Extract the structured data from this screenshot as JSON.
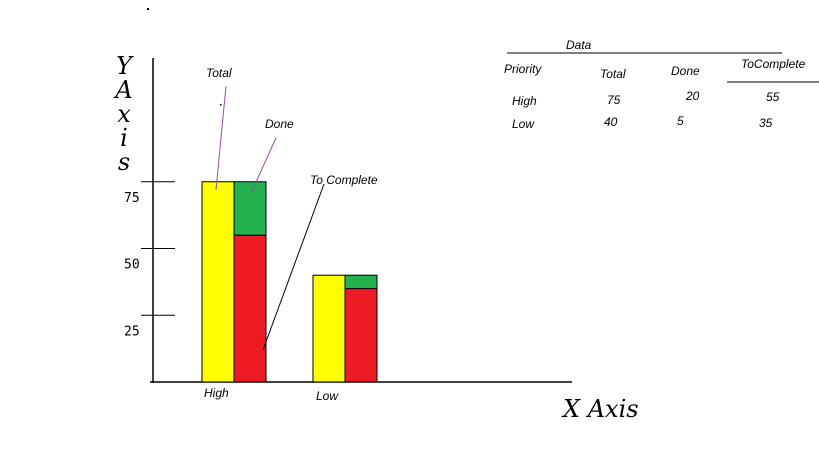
{
  "chart_data": {
    "type": "bar",
    "subtype": "grouped-stacked",
    "categories": [
      "High",
      "Low"
    ],
    "series": [
      {
        "name": "Total",
        "values": [
          75,
          40
        ],
        "color": "#ffff00"
      },
      {
        "name": "Done",
        "values": [
          20,
          5
        ],
        "color": "#22b14c"
      },
      {
        "name": "To Complete",
        "values": [
          55,
          35
        ],
        "color": "#ed1c24"
      }
    ],
    "stacks": [
      [
        "Total"
      ],
      [
        "To Complete",
        "Done"
      ]
    ],
    "ylabel": "Y A x i s",
    "xlabel": "X Axis",
    "yticks": [
      {
        "label": "75",
        "value": 75
      },
      {
        "label": "50",
        "value": 50
      },
      {
        "label": "25",
        "value": 25
      }
    ],
    "ylim": [
      0,
      85
    ],
    "grid": false,
    "annotations": [
      "Total",
      "Done",
      "To Complete"
    ]
  },
  "data_table": {
    "title": "Data",
    "headers": [
      "Priority",
      "Total",
      "Done",
      "ToComplete"
    ],
    "rows": [
      [
        "High",
        "75",
        "20",
        "55"
      ],
      [
        "Low",
        "40",
        "5",
        "35"
      ]
    ]
  }
}
